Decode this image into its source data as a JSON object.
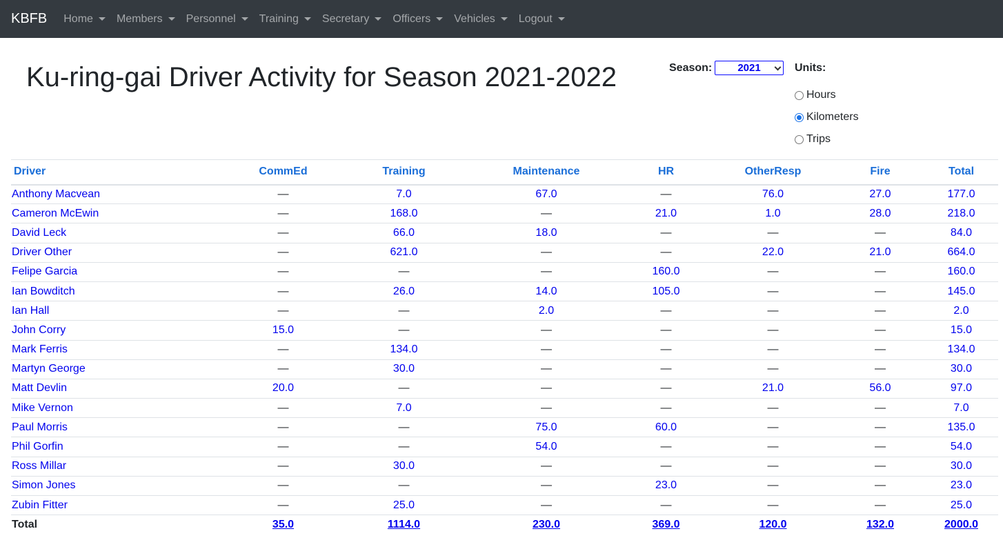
{
  "navbar": {
    "brand": "KBFB",
    "items": [
      "Home",
      "Members",
      "Personnel",
      "Training",
      "Secretary",
      "Officers",
      "Vehicles",
      "Logout"
    ]
  },
  "page": {
    "title": "Ku-ring-gai Driver Activity for Season 2021-2022"
  },
  "season": {
    "label": "Season:",
    "selected": "2021"
  },
  "units": {
    "label": "Units:",
    "options": [
      "Hours",
      "Kilometers",
      "Trips"
    ],
    "selected": "Kilometers"
  },
  "table": {
    "headers": [
      "Driver",
      "CommEd",
      "Training",
      "Maintenance",
      "HR",
      "OtherResp",
      "Fire",
      "Total"
    ],
    "rows": [
      [
        "Anthony Macvean",
        "—",
        "7.0",
        "67.0",
        "—",
        "76.0",
        "27.0",
        "177.0"
      ],
      [
        "Cameron McEwin",
        "—",
        "168.0",
        "—",
        "21.0",
        "1.0",
        "28.0",
        "218.0"
      ],
      [
        "David Leck",
        "—",
        "66.0",
        "18.0",
        "—",
        "—",
        "—",
        "84.0"
      ],
      [
        "Driver Other",
        "—",
        "621.0",
        "—",
        "—",
        "22.0",
        "21.0",
        "664.0"
      ],
      [
        "Felipe Garcia",
        "—",
        "—",
        "—",
        "160.0",
        "—",
        "—",
        "160.0"
      ],
      [
        "Ian Bowditch",
        "—",
        "26.0",
        "14.0",
        "105.0",
        "—",
        "—",
        "145.0"
      ],
      [
        "Ian Hall",
        "—",
        "—",
        "2.0",
        "—",
        "—",
        "—",
        "2.0"
      ],
      [
        "John Corry",
        "15.0",
        "—",
        "—",
        "—",
        "—",
        "—",
        "15.0"
      ],
      [
        "Mark Ferris",
        "—",
        "134.0",
        "—",
        "—",
        "—",
        "—",
        "134.0"
      ],
      [
        "Martyn George",
        "—",
        "30.0",
        "—",
        "—",
        "—",
        "—",
        "30.0"
      ],
      [
        "Matt Devlin",
        "20.0",
        "—",
        "—",
        "—",
        "21.0",
        "56.0",
        "97.0"
      ],
      [
        "Mike Vernon",
        "—",
        "7.0",
        "—",
        "—",
        "—",
        "—",
        "7.0"
      ],
      [
        "Paul Morris",
        "—",
        "—",
        "75.0",
        "60.0",
        "—",
        "—",
        "135.0"
      ],
      [
        "Phil Gorfin",
        "—",
        "—",
        "54.0",
        "—",
        "—",
        "—",
        "54.0"
      ],
      [
        "Ross Millar",
        "—",
        "30.0",
        "—",
        "—",
        "—",
        "—",
        "30.0"
      ],
      [
        "Simon Jones",
        "—",
        "—",
        "—",
        "23.0",
        "—",
        "—",
        "23.0"
      ],
      [
        "Zubin Fitter",
        "—",
        "25.0",
        "—",
        "—",
        "—",
        "—",
        "25.0"
      ]
    ],
    "totals": [
      "Total",
      "35.0",
      "1114.0",
      "230.0",
      "369.0",
      "120.0",
      "132.0",
      "2000.0"
    ]
  },
  "colors": {
    "navbar_bg": "#343a40",
    "link": "#0000ee",
    "header_link": "#1a6ed8"
  }
}
